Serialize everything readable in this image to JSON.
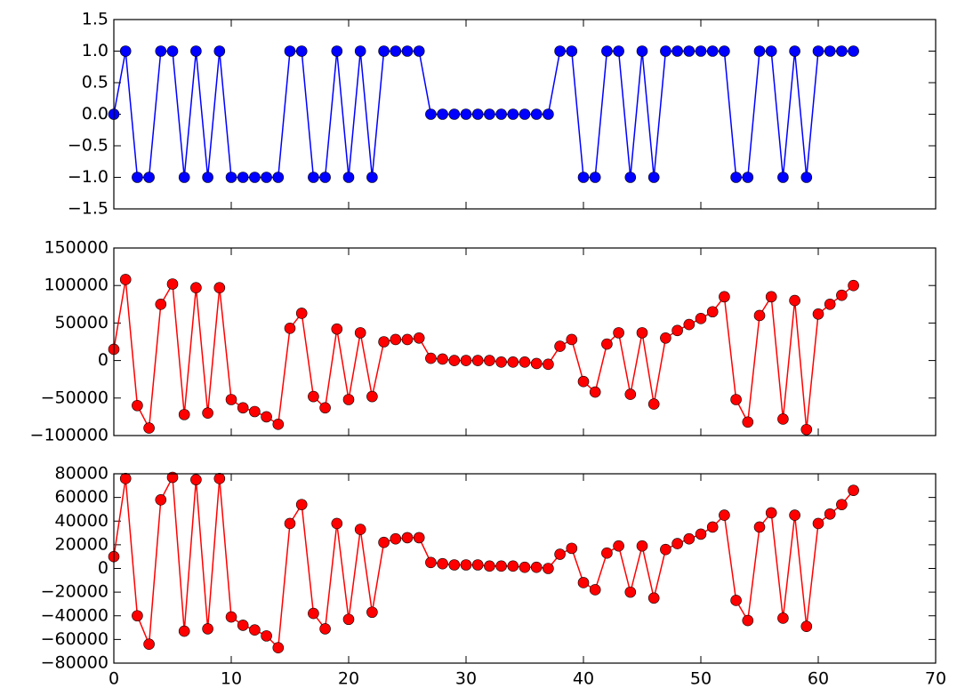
{
  "chart_data": [
    {
      "type": "line",
      "color": "#0000ff",
      "x": [
        0,
        1,
        2,
        3,
        4,
        5,
        6,
        7,
        8,
        9,
        10,
        11,
        12,
        13,
        14,
        15,
        16,
        17,
        18,
        19,
        20,
        21,
        22,
        23,
        24,
        25,
        26,
        27,
        28,
        29,
        30,
        31,
        32,
        33,
        34,
        35,
        36,
        37,
        38,
        39,
        40,
        41,
        42,
        43,
        44,
        45,
        46,
        47,
        48,
        49,
        50,
        51,
        52,
        53,
        54,
        55,
        56,
        57,
        58,
        59,
        60,
        61,
        62,
        63
      ],
      "values": [
        0,
        1,
        -1,
        -1,
        1,
        1,
        -1,
        1,
        -1,
        1,
        -1,
        -1,
        -1,
        -1,
        -1,
        1,
        1,
        -1,
        -1,
        1,
        -1,
        1,
        -1,
        1,
        1,
        1,
        1,
        0,
        0,
        0,
        0,
        0,
        0,
        0,
        0,
        0,
        0,
        0,
        1,
        1,
        -1,
        -1,
        1,
        1,
        -1,
        1,
        -1,
        1,
        1,
        1,
        1,
        1,
        1,
        -1,
        -1,
        1,
        1,
        -1,
        1,
        -1,
        1,
        1,
        1,
        1
      ],
      "xlim": [
        0,
        70
      ],
      "xticks": [
        0,
        10,
        20,
        30,
        40,
        50,
        60,
        70
      ],
      "ylim": [
        -1.5,
        1.5
      ],
      "yticks": [
        {
          "value": -1.5,
          "label": "−1.5"
        },
        {
          "value": -1,
          "label": "−1.0"
        },
        {
          "value": -0.5,
          "label": "−0.5"
        },
        {
          "value": 0,
          "label": "0.0"
        },
        0.5,
        {
          "value": 1,
          "label": "1.0"
        },
        1.5
      ]
    },
    {
      "type": "line",
      "color": "#ff0000",
      "x": [
        0,
        1,
        2,
        3,
        4,
        5,
        6,
        7,
        8,
        9,
        10,
        11,
        12,
        13,
        14,
        15,
        16,
        17,
        18,
        19,
        20,
        21,
        22,
        23,
        24,
        25,
        26,
        27,
        28,
        29,
        30,
        31,
        32,
        33,
        34,
        35,
        36,
        37,
        38,
        39,
        40,
        41,
        42,
        43,
        44,
        45,
        46,
        47,
        48,
        49,
        50,
        51,
        52,
        53,
        54,
        55,
        56,
        57,
        58,
        59,
        60,
        61,
        62,
        63
      ],
      "values": [
        15000,
        108000,
        -60000,
        -90000,
        75000,
        102000,
        -72000,
        97000,
        -70000,
        97000,
        -52000,
        -63000,
        -68000,
        -75000,
        -85000,
        43000,
        63000,
        -48000,
        -63000,
        42000,
        -52000,
        37000,
        -48000,
        25000,
        28000,
        28000,
        30000,
        3000,
        2000,
        0,
        0,
        0,
        0,
        -2000,
        -2000,
        -2000,
        -4000,
        -5000,
        19000,
        28000,
        -28000,
        -42000,
        22000,
        37000,
        -45000,
        37000,
        -58000,
        30000,
        40000,
        48000,
        56000,
        65000,
        85000,
        -52000,
        -82000,
        60000,
        85000,
        -78000,
        80000,
        -92000,
        62000,
        75000,
        87000,
        100000
      ],
      "xlim": [
        0,
        70
      ],
      "xticks": [
        0,
        10,
        20,
        30,
        40,
        50,
        60,
        70
      ],
      "ylim": [
        -100000,
        150000
      ],
      "yticks": [
        {
          "value": -100000,
          "label": "−100000"
        },
        {
          "value": -50000,
          "label": "−50000"
        },
        0,
        50000,
        100000,
        150000
      ]
    },
    {
      "type": "line",
      "color": "#ff0000",
      "x": [
        0,
        1,
        2,
        3,
        4,
        5,
        6,
        7,
        8,
        9,
        10,
        11,
        12,
        13,
        14,
        15,
        16,
        17,
        18,
        19,
        20,
        21,
        22,
        23,
        24,
        25,
        26,
        27,
        28,
        29,
        30,
        31,
        32,
        33,
        34,
        35,
        36,
        37,
        38,
        39,
        40,
        41,
        42,
        43,
        44,
        45,
        46,
        47,
        48,
        49,
        50,
        51,
        52,
        53,
        54,
        55,
        56,
        57,
        58,
        59,
        60,
        61,
        62,
        63
      ],
      "values": [
        10000,
        76000,
        -40000,
        -64000,
        58000,
        77000,
        -53000,
        75000,
        -51000,
        76000,
        -41000,
        -48000,
        -52000,
        -57000,
        -67000,
        38000,
        54000,
        -38000,
        -51000,
        38000,
        -43000,
        33000,
        -37000,
        22000,
        25000,
        26000,
        26000,
        5000,
        4000,
        3000,
        3000,
        3000,
        2000,
        2000,
        2000,
        1000,
        1000,
        0,
        12000,
        17000,
        -12000,
        -18000,
        13000,
        19000,
        -20000,
        19000,
        -25000,
        16000,
        21000,
        25000,
        29000,
        35000,
        45000,
        -27000,
        -44000,
        35000,
        47000,
        -42000,
        45000,
        -49000,
        38000,
        46000,
        54000,
        66000
      ],
      "xlim": [
        0,
        70
      ],
      "xticks": [
        0,
        10,
        20,
        30,
        40,
        50,
        60,
        70
      ],
      "ylim": [
        -80000,
        80000
      ],
      "yticks": [
        {
          "value": -80000,
          "label": "−80000"
        },
        {
          "value": -60000,
          "label": "−60000"
        },
        {
          "value": -40000,
          "label": "−40000"
        },
        {
          "value": -20000,
          "label": "−20000"
        },
        0,
        20000,
        40000,
        60000,
        80000
      ]
    }
  ]
}
